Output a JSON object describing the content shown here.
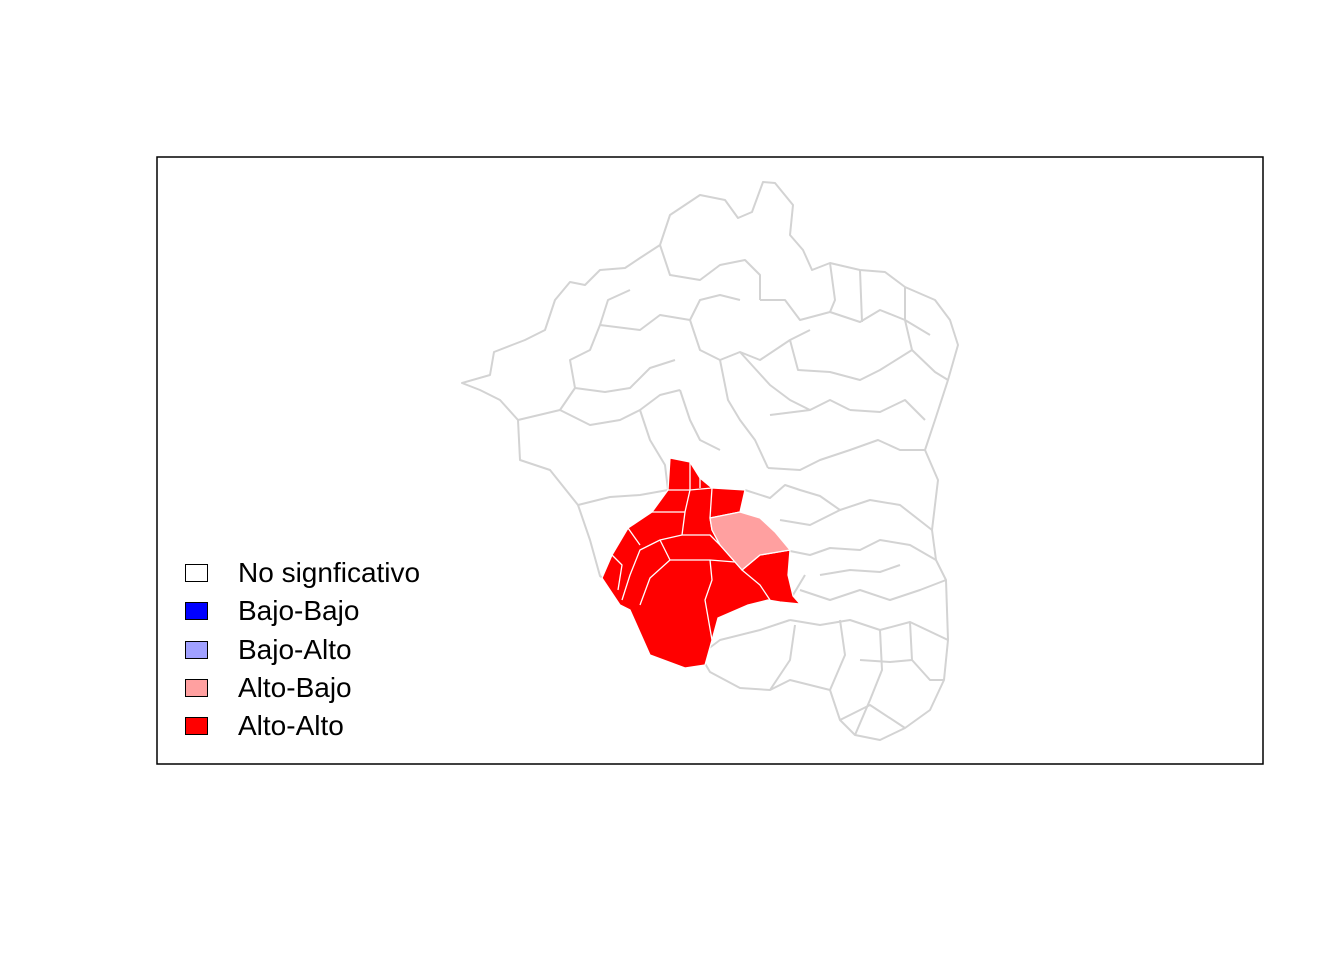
{
  "map": {
    "base_stroke": "#d3d3d3",
    "base_fill": "#ffffff",
    "frame_stroke": "#000000"
  },
  "legend": {
    "items": [
      {
        "label": "No signficativo",
        "color": "#ffffff"
      },
      {
        "label": "Bajo-Bajo",
        "color": "#0000ff"
      },
      {
        "label": "Bajo-Alto",
        "color": "#a0a0ff"
      },
      {
        "label": "Alto-Bajo",
        "color": "#ffa0a0"
      },
      {
        "label": "Alto-Alto",
        "color": "#ff0000"
      }
    ]
  }
}
